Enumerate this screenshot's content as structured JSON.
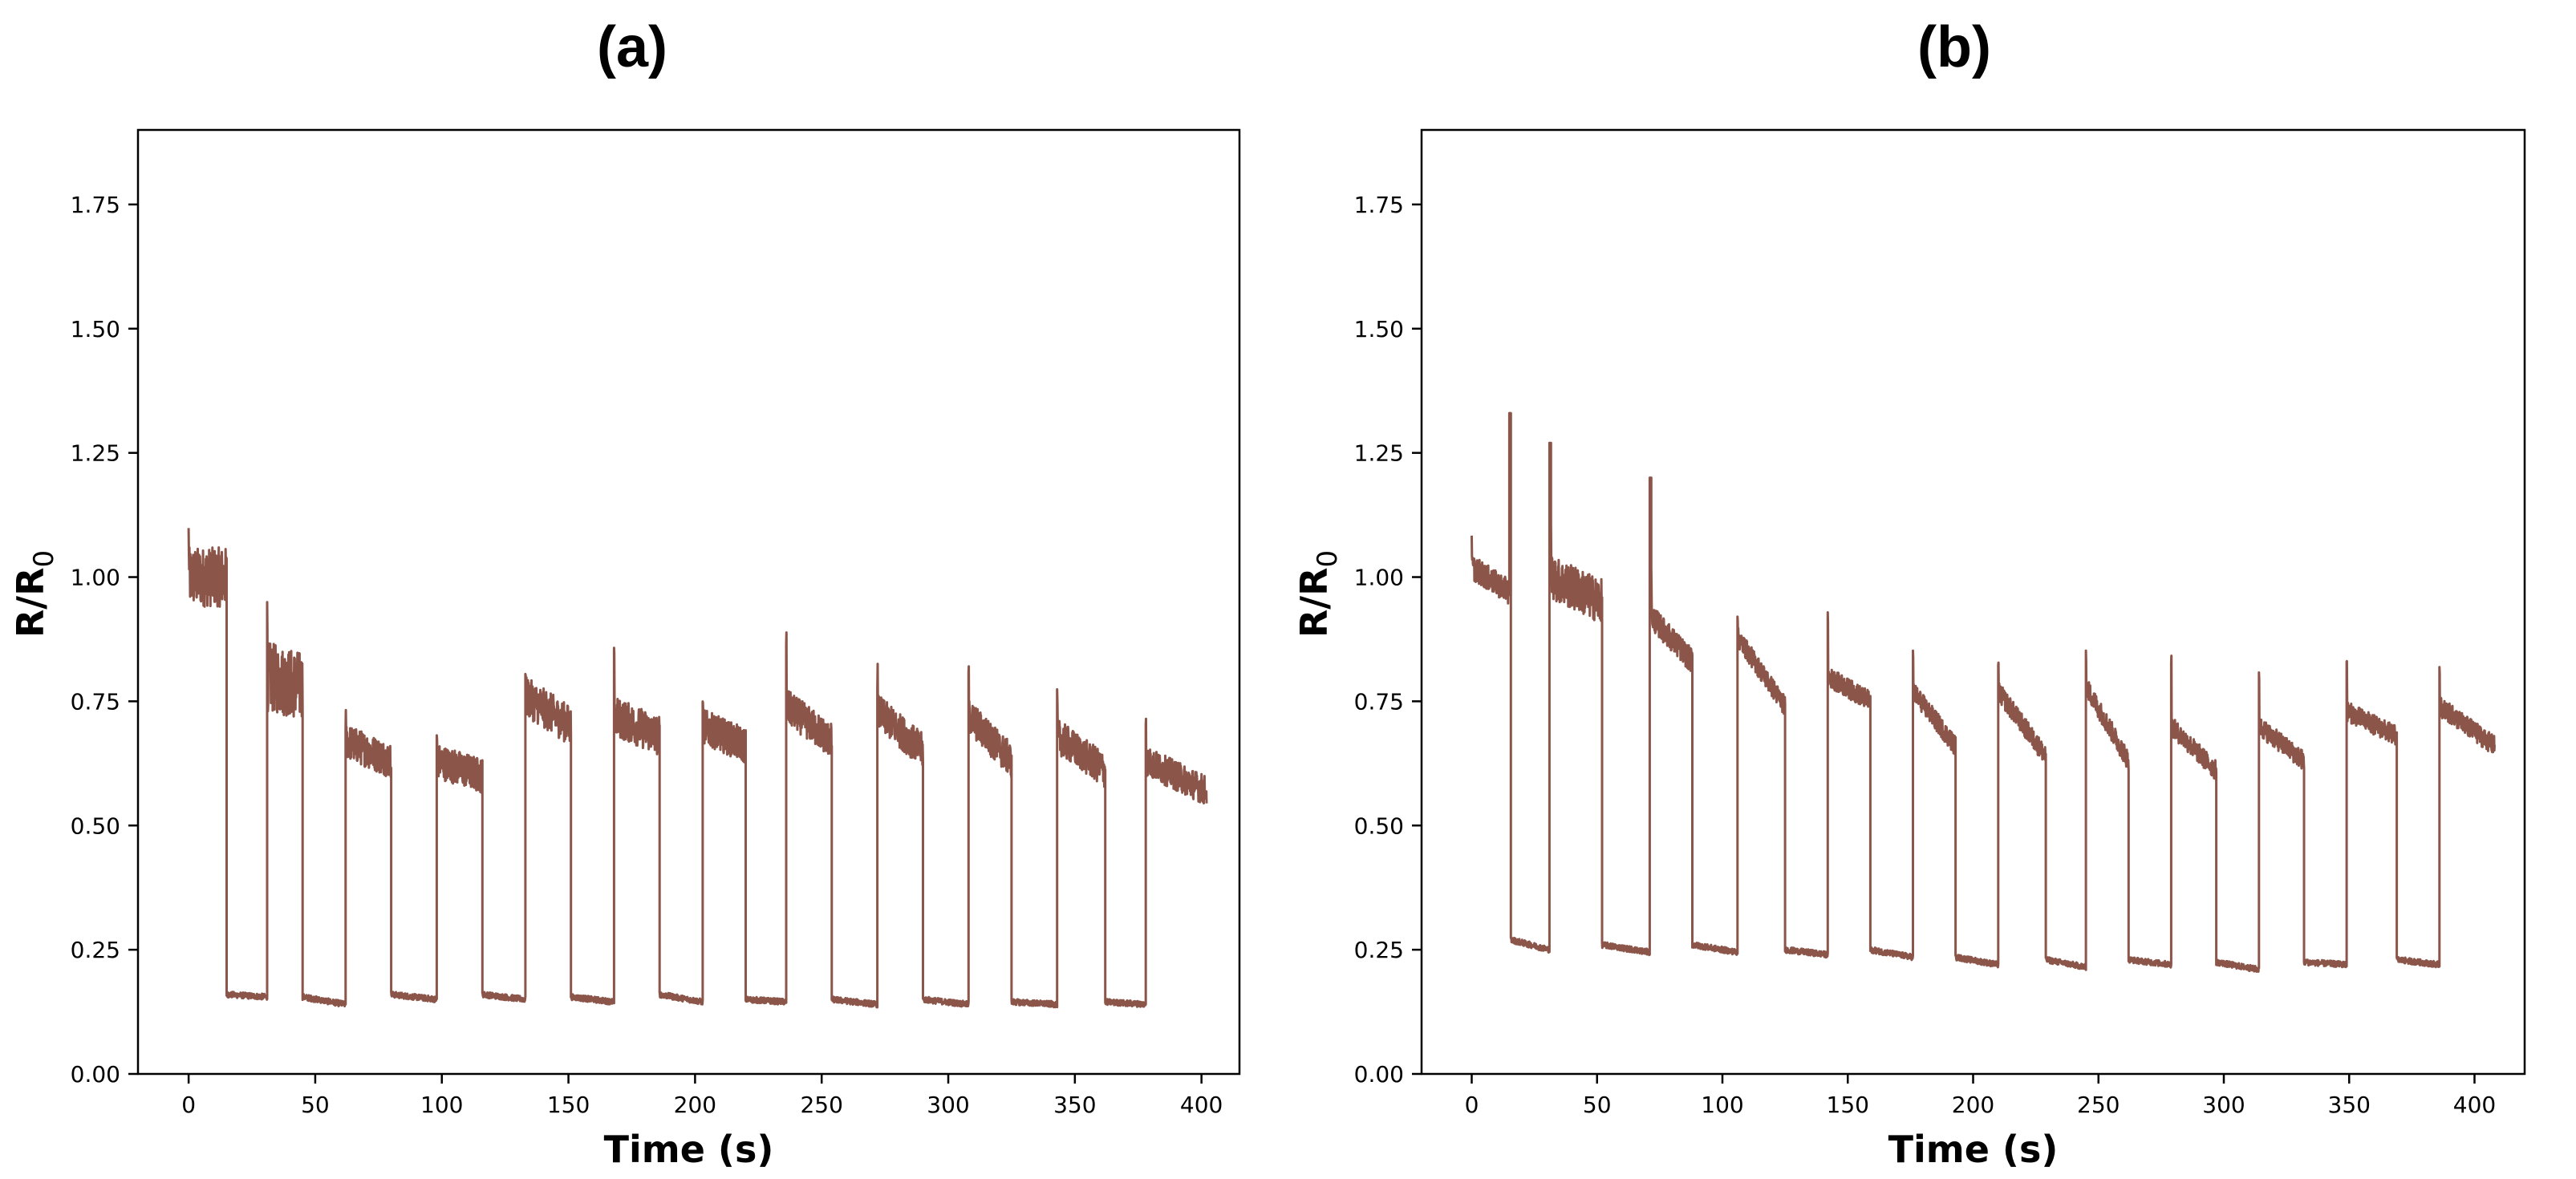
{
  "panels": {
    "a": {
      "label": "(a)"
    },
    "b": {
      "label": "(b)"
    }
  },
  "colors": {
    "series": "#8B5549",
    "axis": "#000000"
  },
  "chart_data": [
    {
      "type": "line",
      "panel": "(a)",
      "title": "",
      "xlabel": "Time (s)",
      "ylabel_main": "R/R",
      "ylabel_sub": "0",
      "xlim": [
        -20,
        415
      ],
      "ylim": [
        0,
        1.9
      ],
      "xticks": [
        0,
        50,
        100,
        150,
        200,
        250,
        300,
        350,
        400
      ],
      "yticks": [
        0.0,
        0.25,
        0.5,
        0.75,
        1.0,
        1.25,
        1.5,
        1.75
      ],
      "ytick_labels": [
        "0.00",
        "0.25",
        "0.50",
        "0.75",
        "1.00",
        "1.25",
        "1.50",
        "1.75"
      ],
      "grid": false,
      "series": [
        {
          "color": "#8B5549",
          "segments": [
            {
              "x0": 0,
              "x1": 15,
              "y0": 1.0,
              "y1": 1.0,
              "noise": 0.06,
              "kind": "high",
              "peak": 1.08
            },
            {
              "x0": 15,
              "x1": 31,
              "y0": 0.16,
              "y1": 0.155,
              "noise": 0.006,
              "kind": "low"
            },
            {
              "x0": 31,
              "x1": 45,
              "y0": 0.8,
              "y1": 0.78,
              "noise": 0.07,
              "kind": "high",
              "peak": 0.9
            },
            {
              "x0": 45,
              "x1": 62,
              "y0": 0.155,
              "y1": 0.14,
              "noise": 0.006,
              "kind": "low"
            },
            {
              "x0": 62,
              "x1": 80,
              "y0": 0.67,
              "y1": 0.63,
              "noise": 0.035,
              "kind": "high",
              "peak": 0.72
            },
            {
              "x0": 80,
              "x1": 98,
              "y0": 0.16,
              "y1": 0.15,
              "noise": 0.006,
              "kind": "low"
            },
            {
              "x0": 98,
              "x1": 116,
              "y0": 0.63,
              "y1": 0.6,
              "noise": 0.035,
              "kind": "high",
              "peak": 0.68
            },
            {
              "x0": 116,
              "x1": 133,
              "y0": 0.16,
              "y1": 0.15,
              "noise": 0.006,
              "kind": "low"
            },
            {
              "x0": 133,
              "x1": 151,
              "y0": 0.76,
              "y1": 0.7,
              "noise": 0.04,
              "kind": "high",
              "peak": 0.83
            },
            {
              "x0": 151,
              "x1": 168,
              "y0": 0.155,
              "y1": 0.145,
              "noise": 0.006,
              "kind": "low"
            },
            {
              "x0": 168,
              "x1": 186,
              "y0": 0.72,
              "y1": 0.68,
              "noise": 0.04,
              "kind": "high",
              "peak": 0.82
            },
            {
              "x0": 186,
              "x1": 203,
              "y0": 0.16,
              "y1": 0.145,
              "noise": 0.006,
              "kind": "low"
            },
            {
              "x0": 203,
              "x1": 220,
              "y0": 0.7,
              "y1": 0.66,
              "noise": 0.035,
              "kind": "high",
              "peak": 0.76
            },
            {
              "x0": 220,
              "x1": 236,
              "y0": 0.15,
              "y1": 0.145,
              "noise": 0.006,
              "kind": "low"
            },
            {
              "x0": 236,
              "x1": 254,
              "y0": 0.74,
              "y1": 0.67,
              "noise": 0.035,
              "kind": "high",
              "peak": 0.86
            },
            {
              "x0": 254,
              "x1": 272,
              "y0": 0.15,
              "y1": 0.14,
              "noise": 0.006,
              "kind": "low"
            },
            {
              "x0": 272,
              "x1": 290,
              "y0": 0.73,
              "y1": 0.65,
              "noise": 0.035,
              "kind": "high",
              "peak": 0.8
            },
            {
              "x0": 290,
              "x1": 308,
              "y0": 0.15,
              "y1": 0.14,
              "noise": 0.006,
              "kind": "low"
            },
            {
              "x0": 308,
              "x1": 325,
              "y0": 0.72,
              "y1": 0.63,
              "noise": 0.035,
              "kind": "high",
              "peak": 0.8
            },
            {
              "x0": 325,
              "x1": 343,
              "y0": 0.145,
              "y1": 0.14,
              "noise": 0.006,
              "kind": "low"
            },
            {
              "x0": 343,
              "x1": 362,
              "y0": 0.68,
              "y1": 0.61,
              "noise": 0.035,
              "kind": "high",
              "peak": 0.74
            },
            {
              "x0": 362,
              "x1": 378,
              "y0": 0.145,
              "y1": 0.14,
              "noise": 0.006,
              "kind": "low"
            },
            {
              "x0": 378,
              "x1": 402,
              "y0": 0.63,
              "y1": 0.57,
              "noise": 0.03,
              "kind": "high",
              "peak": 0.72
            }
          ]
        }
      ]
    },
    {
      "type": "line",
      "panel": "(b)",
      "title": "",
      "xlabel": "Time (s)",
      "ylabel_main": "R/R",
      "ylabel_sub": "0",
      "xlim": [
        -20,
        420
      ],
      "ylim": [
        0,
        1.9
      ],
      "xticks": [
        0,
        50,
        100,
        150,
        200,
        250,
        300,
        350,
        400
      ],
      "yticks": [
        0.0,
        0.25,
        0.5,
        0.75,
        1.0,
        1.25,
        1.5,
        1.75
      ],
      "ytick_labels": [
        "0.00",
        "0.25",
        "0.50",
        "0.75",
        "1.00",
        "1.25",
        "1.50",
        "1.75"
      ],
      "grid": false,
      "series": [
        {
          "color": "#8B5549",
          "segments": [
            {
              "x0": 0,
              "x1": 15,
              "y0": 1.02,
              "y1": 0.97,
              "noise": 0.025,
              "kind": "high",
              "peak": 1.06
            },
            {
              "x0": 15,
              "x1": 15.6,
              "y0": 1.33,
              "y1": 1.33,
              "noise": 0,
              "kind": "spike"
            },
            {
              "x0": 15.6,
              "x1": 31,
              "y0": 0.27,
              "y1": 0.25,
              "noise": 0.006,
              "kind": "low"
            },
            {
              "x0": 31,
              "x1": 31.6,
              "y0": 1.27,
              "y1": 1.27,
              "noise": 0,
              "kind": "spike"
            },
            {
              "x0": 31.6,
              "x1": 52,
              "y0": 1.0,
              "y1": 0.95,
              "noise": 0.045,
              "kind": "high",
              "peak": 1.07
            },
            {
              "x0": 52,
              "x1": 71,
              "y0": 0.26,
              "y1": 0.245,
              "noise": 0.006,
              "kind": "low"
            },
            {
              "x0": 71,
              "x1": 71.6,
              "y0": 1.2,
              "y1": 1.2,
              "noise": 0,
              "kind": "spike"
            },
            {
              "x0": 71.6,
              "x1": 88,
              "y0": 0.92,
              "y1": 0.83,
              "noise": 0.025,
              "kind": "high",
              "peak": 1.0
            },
            {
              "x0": 88,
              "x1": 106,
              "y0": 0.26,
              "y1": 0.245,
              "noise": 0.006,
              "kind": "low"
            },
            {
              "x0": 106,
              "x1": 125,
              "y0": 0.88,
              "y1": 0.74,
              "noise": 0.02,
              "kind": "high",
              "peak": 0.93
            },
            {
              "x0": 125,
              "x1": 142,
              "y0": 0.25,
              "y1": 0.24,
              "noise": 0.006,
              "kind": "low"
            },
            {
              "x0": 142,
              "x1": 159,
              "y0": 0.8,
              "y1": 0.75,
              "noise": 0.02,
              "kind": "high",
              "peak": 0.91
            },
            {
              "x0": 159,
              "x1": 176,
              "y0": 0.25,
              "y1": 0.235,
              "noise": 0.006,
              "kind": "low"
            },
            {
              "x0": 176,
              "x1": 193,
              "y0": 0.77,
              "y1": 0.66,
              "noise": 0.02,
              "kind": "high",
              "peak": 0.84
            },
            {
              "x0": 193,
              "x1": 210,
              "y0": 0.235,
              "y1": 0.22,
              "noise": 0.006,
              "kind": "low"
            },
            {
              "x0": 210,
              "x1": 229,
              "y0": 0.77,
              "y1": 0.64,
              "noise": 0.02,
              "kind": "high",
              "peak": 0.83
            },
            {
              "x0": 229,
              "x1": 245,
              "y0": 0.23,
              "y1": 0.215,
              "noise": 0.006,
              "kind": "low"
            },
            {
              "x0": 245,
              "x1": 262,
              "y0": 0.78,
              "y1": 0.63,
              "noise": 0.02,
              "kind": "high",
              "peak": 0.85
            },
            {
              "x0": 262,
              "x1": 279,
              "y0": 0.23,
              "y1": 0.22,
              "noise": 0.006,
              "kind": "low"
            },
            {
              "x0": 279,
              "x1": 297,
              "y0": 0.7,
              "y1": 0.61,
              "noise": 0.02,
              "kind": "high",
              "peak": 0.83
            },
            {
              "x0": 297,
              "x1": 314,
              "y0": 0.225,
              "y1": 0.21,
              "noise": 0.006,
              "kind": "low"
            },
            {
              "x0": 314,
              "x1": 332,
              "y0": 0.7,
              "y1": 0.63,
              "noise": 0.02,
              "kind": "high",
              "peak": 0.79
            },
            {
              "x0": 332,
              "x1": 349,
              "y0": 0.225,
              "y1": 0.22,
              "noise": 0.006,
              "kind": "low"
            },
            {
              "x0": 349,
              "x1": 369,
              "y0": 0.73,
              "y1": 0.68,
              "noise": 0.02,
              "kind": "high",
              "peak": 0.84
            },
            {
              "x0": 369,
              "x1": 386,
              "y0": 0.23,
              "y1": 0.22,
              "noise": 0.006,
              "kind": "low"
            },
            {
              "x0": 386,
              "x1": 408,
              "y0": 0.74,
              "y1": 0.66,
              "noise": 0.02,
              "kind": "high",
              "peak": 0.82
            }
          ]
        }
      ]
    }
  ]
}
